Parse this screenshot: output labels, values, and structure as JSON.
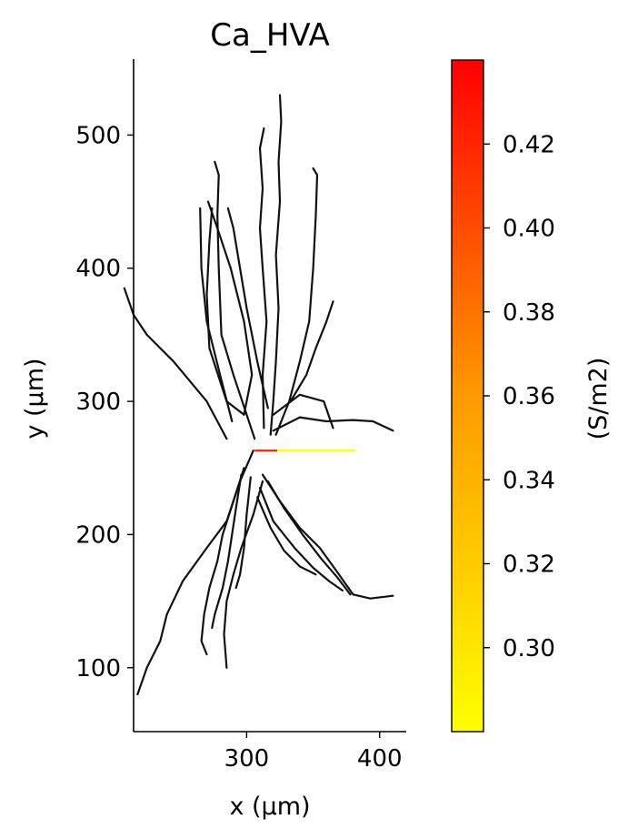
{
  "chart_data": {
    "type": "line",
    "title": "Ca_HVA",
    "xlabel": "x (µm)",
    "ylabel": "y (µm)",
    "xlim": [
      215,
      420
    ],
    "ylim": [
      52,
      557
    ],
    "x_ticks": [
      300,
      400
    ],
    "x_tick_labels": [
      "300",
      "400"
    ],
    "y_ticks": [
      100,
      200,
      300,
      400,
      500
    ],
    "y_tick_labels": [
      "100",
      "200",
      "300",
      "400",
      "500"
    ],
    "grid": false,
    "spines": "left-bottom",
    "branch_color": "#111111",
    "soma": {
      "y": 263,
      "segments": [
        {
          "x0": 306,
          "x1": 323,
          "value": 0.435,
          "color": "#ff1e00"
        },
        {
          "x0": 323,
          "x1": 382,
          "value": 0.285,
          "color": "#ffff00"
        }
      ]
    },
    "branches": [
      {
        "name": "apical-tall",
        "points": [
          [
            318,
            275
          ],
          [
            320,
            300
          ],
          [
            322,
            330
          ],
          [
            324,
            370
          ],
          [
            322,
            410
          ],
          [
            325,
            450
          ],
          [
            324,
            480
          ],
          [
            326,
            510
          ],
          [
            325,
            530
          ]
        ]
      },
      {
        "name": "apical-center",
        "points": [
          [
            313,
            280
          ],
          [
            312,
            320
          ],
          [
            315,
            360
          ],
          [
            312,
            400
          ],
          [
            310,
            430
          ],
          [
            312,
            460
          ],
          [
            310,
            490
          ],
          [
            313,
            505
          ]
        ]
      },
      {
        "name": "apical-right",
        "points": [
          [
            322,
            275
          ],
          [
            332,
            300
          ],
          [
            340,
            330
          ],
          [
            347,
            360
          ],
          [
            350,
            400
          ],
          [
            352,
            440
          ],
          [
            353,
            470
          ],
          [
            350,
            475
          ]
        ]
      },
      {
        "name": "apical-right-oblique",
        "points": [
          [
            333,
            300
          ],
          [
            345,
            320
          ],
          [
            352,
            340
          ],
          [
            360,
            360
          ],
          [
            365,
            375
          ]
        ]
      },
      {
        "name": "apical-left-1",
        "points": [
          [
            306,
            272
          ],
          [
            300,
            290
          ],
          [
            290,
            320
          ],
          [
            281,
            350
          ],
          [
            279,
            400
          ],
          [
            278,
            440
          ],
          [
            279,
            470
          ],
          [
            276,
            480
          ]
        ]
      },
      {
        "name": "apical-left-2",
        "points": [
          [
            298,
            290
          ],
          [
            285,
            300
          ],
          [
            272,
            340
          ],
          [
            270,
            380
          ],
          [
            272,
            420
          ],
          [
            274,
            445
          ]
        ]
      },
      {
        "name": "apical-left-3",
        "points": [
          [
            289,
            285
          ],
          [
            280,
            320
          ],
          [
            270,
            360
          ],
          [
            266,
            400
          ],
          [
            265,
            445
          ]
        ]
      },
      {
        "name": "apical-cross",
        "points": [
          [
            298,
            290
          ],
          [
            304,
            320
          ],
          [
            298,
            360
          ],
          [
            288,
            400
          ],
          [
            278,
            430
          ],
          [
            271,
            450
          ]
        ]
      },
      {
        "name": "apical-cross-2",
        "points": [
          [
            316,
            295
          ],
          [
            308,
            330
          ],
          [
            300,
            370
          ],
          [
            295,
            400
          ],
          [
            290,
            430
          ],
          [
            286,
            445
          ]
        ]
      },
      {
        "name": "oblique-left",
        "points": [
          [
            285,
            272
          ],
          [
            270,
            300
          ],
          [
            245,
            330
          ],
          [
            225,
            350
          ],
          [
            215,
            365
          ],
          [
            208,
            385
          ]
        ]
      },
      {
        "name": "oblique-right",
        "points": [
          [
            320,
            278
          ],
          [
            340,
            288
          ],
          [
            360,
            285
          ],
          [
            380,
            286
          ],
          [
            395,
            285
          ],
          [
            410,
            278
          ]
        ]
      },
      {
        "name": "oblique-right-2",
        "points": [
          [
            320,
            290
          ],
          [
            340,
            305
          ],
          [
            358,
            300
          ],
          [
            365,
            280
          ]
        ]
      },
      {
        "name": "basal-long-left",
        "points": [
          [
            305,
            263
          ],
          [
            295,
            240
          ],
          [
            285,
            210
          ],
          [
            270,
            190
          ],
          [
            252,
            165
          ],
          [
            240,
            140
          ],
          [
            235,
            120
          ],
          [
            225,
            100
          ],
          [
            218,
            80
          ]
        ]
      },
      {
        "name": "basal-left-2",
        "points": [
          [
            298,
            250
          ],
          [
            290,
            225
          ],
          [
            282,
            200
          ],
          [
            278,
            180
          ],
          [
            272,
            160
          ],
          [
            268,
            140
          ],
          [
            266,
            120
          ],
          [
            270,
            110
          ]
        ]
      },
      {
        "name": "basal-left-3",
        "points": [
          [
            296,
            245
          ],
          [
            292,
            220
          ],
          [
            289,
            200
          ],
          [
            286,
            180
          ],
          [
            282,
            160
          ],
          [
            276,
            140
          ],
          [
            274,
            130
          ]
        ]
      },
      {
        "name": "basal-left-4",
        "points": [
          [
            303,
            243
          ],
          [
            300,
            215
          ],
          [
            298,
            190
          ],
          [
            295,
            170
          ],
          [
            292,
            160
          ]
        ]
      },
      {
        "name": "basal-down",
        "points": [
          [
            312,
            240
          ],
          [
            305,
            215
          ],
          [
            296,
            190
          ],
          [
            290,
            170
          ],
          [
            285,
            150
          ],
          [
            283,
            125
          ],
          [
            285,
            100
          ]
        ]
      },
      {
        "name": "basal-right-1",
        "points": [
          [
            312,
            245
          ],
          [
            325,
            225
          ],
          [
            340,
            205
          ],
          [
            355,
            190
          ],
          [
            368,
            172
          ],
          [
            380,
            155
          ],
          [
            393,
            152
          ],
          [
            410,
            154
          ]
        ]
      },
      {
        "name": "basal-right-2",
        "points": [
          [
            316,
            240
          ],
          [
            328,
            220
          ],
          [
            342,
            200
          ],
          [
            356,
            182
          ],
          [
            368,
            168
          ],
          [
            378,
            155
          ]
        ]
      },
      {
        "name": "basal-right-3",
        "points": [
          [
            310,
            235
          ],
          [
            320,
            210
          ],
          [
            336,
            190
          ],
          [
            350,
            175
          ],
          [
            362,
            165
          ],
          [
            372,
            158
          ]
        ]
      },
      {
        "name": "basal-right-4",
        "points": [
          [
            308,
            228
          ],
          [
            318,
            205
          ],
          [
            328,
            188
          ],
          [
            340,
            176
          ],
          [
            352,
            170
          ]
        ]
      }
    ],
    "colorbar": {
      "label": "(S/m2)",
      "min": 0.28,
      "max": 0.44,
      "ticks": [
        0.3,
        0.32,
        0.34,
        0.36,
        0.38,
        0.4,
        0.42
      ],
      "tick_labels": [
        "0.30",
        "0.32",
        "0.34",
        "0.36",
        "0.38",
        "0.40",
        "0.42"
      ],
      "color_low": "#ffff00",
      "color_high": "#ff0000"
    }
  }
}
